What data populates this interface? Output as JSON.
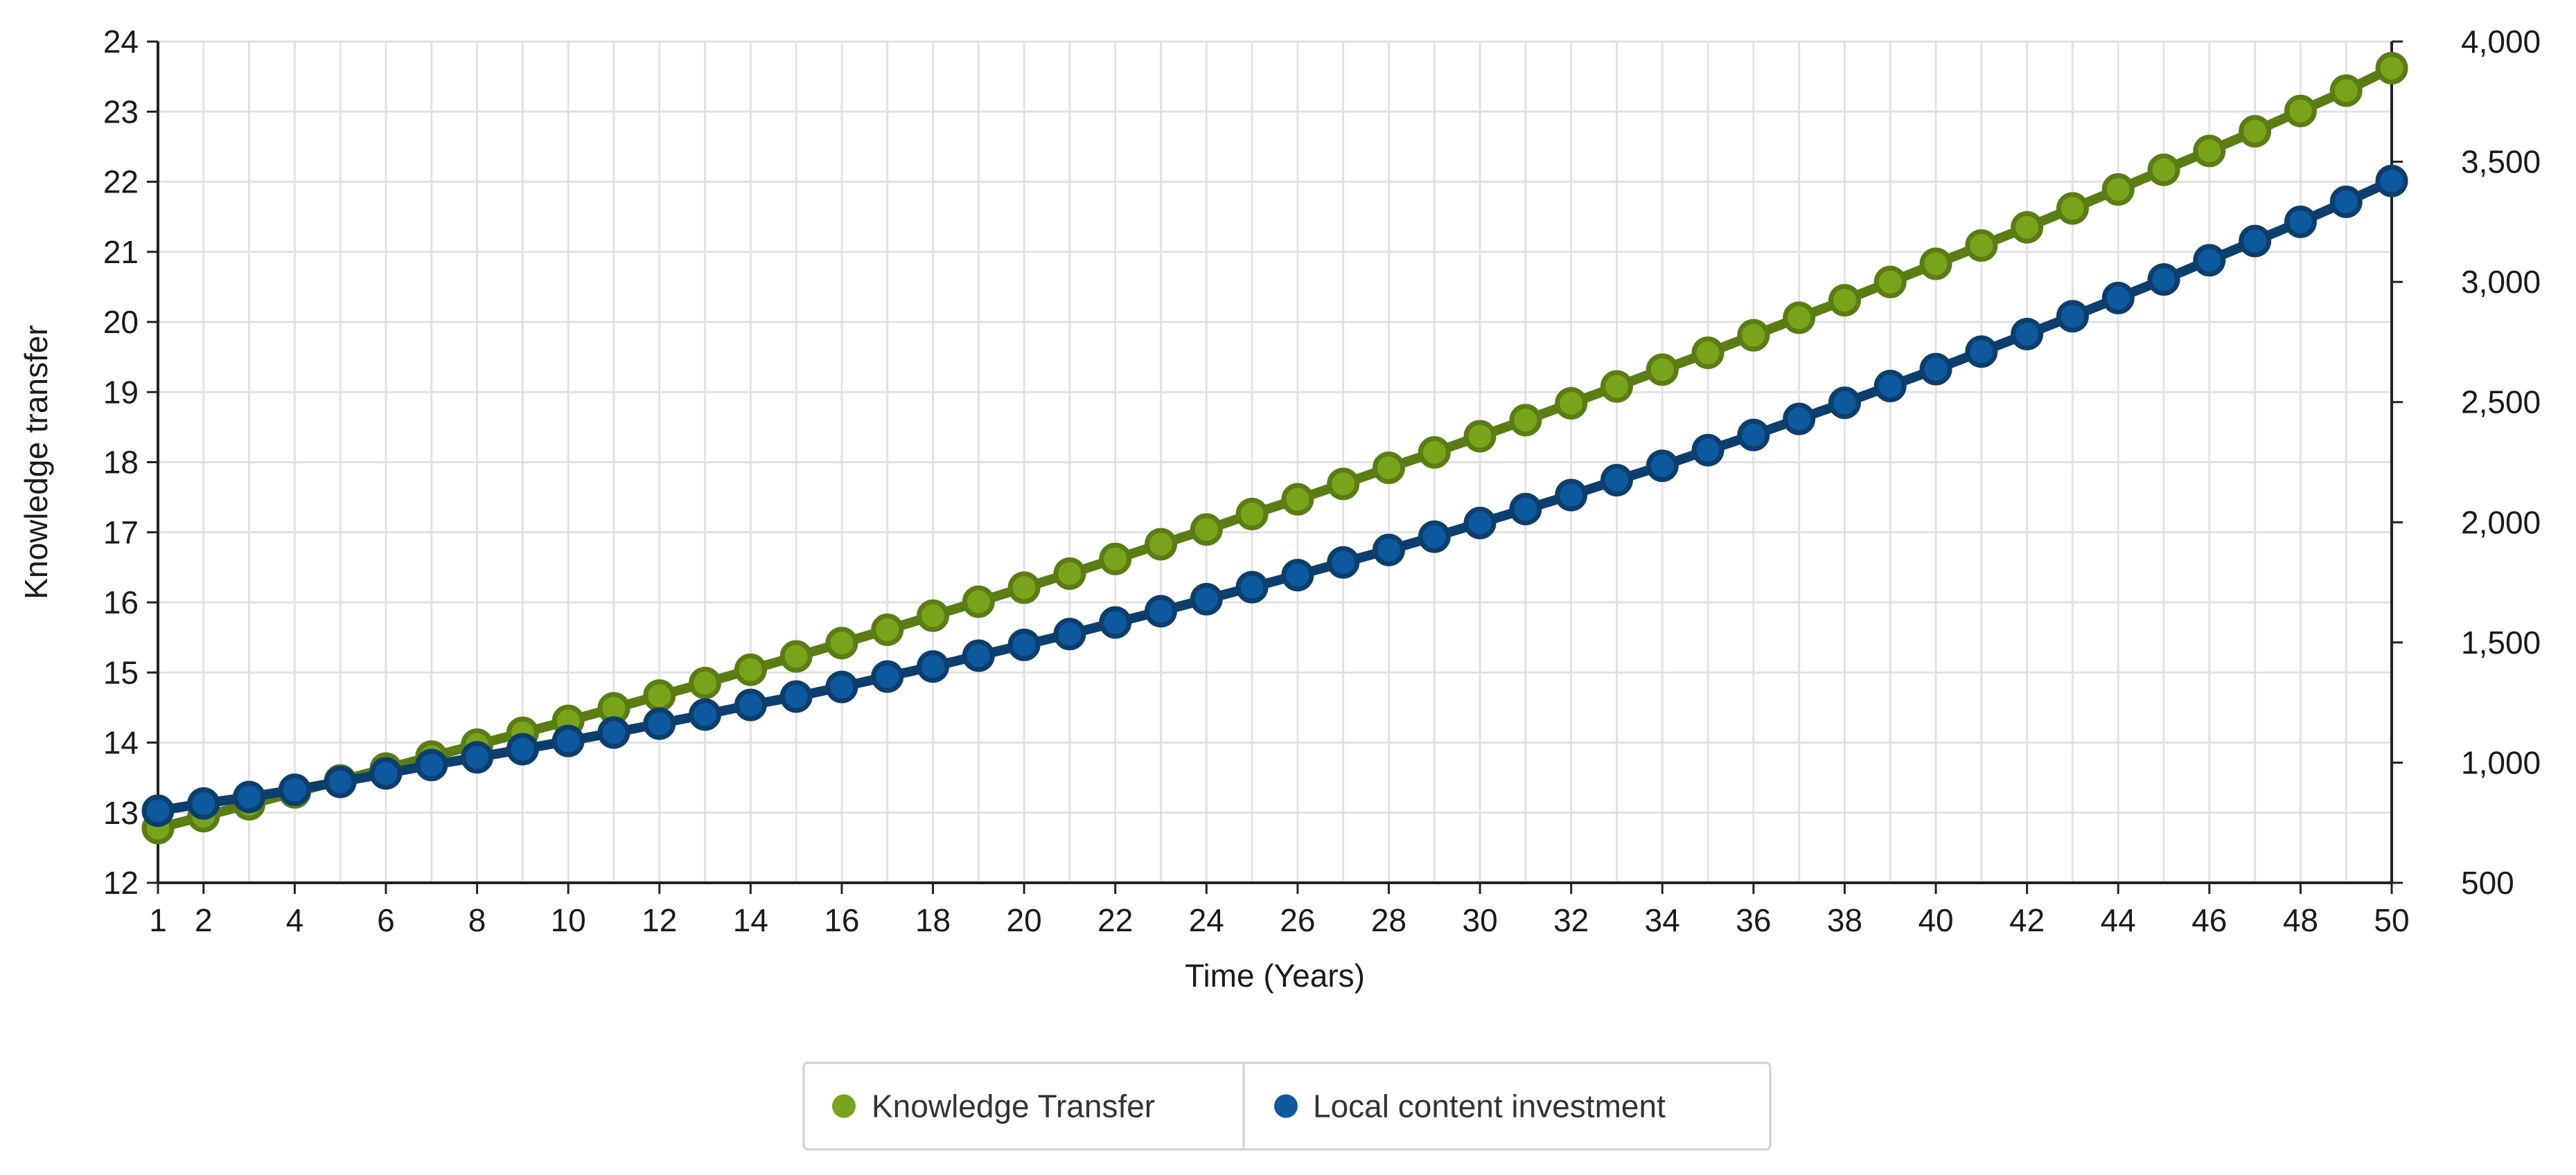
{
  "chart_data": {
    "type": "line",
    "xlabel": "Time (Years)",
    "ylabel": "Knowledge transfer",
    "y2label": "",
    "x_ticks": [
      1,
      2,
      4,
      6,
      8,
      10,
      12,
      14,
      16,
      18,
      20,
      22,
      24,
      26,
      28,
      30,
      32,
      34,
      36,
      38,
      40,
      42,
      44,
      46,
      48,
      50
    ],
    "y_ticks": [
      12,
      13,
      14,
      15,
      16,
      17,
      18,
      19,
      20,
      21,
      22,
      23,
      24
    ],
    "y2_ticks": [
      "500",
      "1,000",
      "1,500",
      "2,000",
      "2,500",
      "3,000",
      "3,500",
      "4,000"
    ],
    "y2_tick_values": [
      500,
      1000,
      1500,
      2000,
      2500,
      3000,
      3500,
      4000
    ],
    "xlim": [
      1,
      50
    ],
    "ylim": [
      12,
      24
    ],
    "y2lim": [
      500,
      4000
    ],
    "grid": true,
    "legend_position": "bottom-center",
    "x": [
      1,
      2,
      3,
      4,
      5,
      6,
      7,
      8,
      9,
      10,
      11,
      12,
      13,
      14,
      15,
      16,
      17,
      18,
      19,
      20,
      21,
      22,
      23,
      24,
      25,
      26,
      27,
      28,
      29,
      30,
      31,
      32,
      33,
      34,
      35,
      36,
      37,
      38,
      39,
      40,
      41,
      42,
      43,
      44,
      45,
      46,
      47,
      48,
      49,
      50
    ],
    "series": [
      {
        "name": "Knowledge Transfer",
        "axis": "left",
        "color": "#5a7d14",
        "marker_color": "#7aa31c",
        "values": [
          12.78,
          12.95,
          13.12,
          13.29,
          13.46,
          13.63,
          13.8,
          13.97,
          14.14,
          14.31,
          14.49,
          14.67,
          14.85,
          15.04,
          15.23,
          15.42,
          15.61,
          15.81,
          16.01,
          16.21,
          16.41,
          16.62,
          16.83,
          17.04,
          17.26,
          17.47,
          17.69,
          17.92,
          18.14,
          18.37,
          18.6,
          18.84,
          19.08,
          19.32,
          19.56,
          19.81,
          20.06,
          20.31,
          20.57,
          20.83,
          21.09,
          21.35,
          21.62,
          21.89,
          22.17,
          22.44,
          22.72,
          23.01,
          23.3,
          23.62
        ]
      },
      {
        "name": "Local content investment",
        "axis": "right",
        "color": "#0d3f6e",
        "marker_color": "#0f5a9e",
        "values": [
          800,
          830,
          857,
          887,
          920,
          955,
          990,
          1022,
          1056,
          1090,
          1125,
          1162,
          1200,
          1240,
          1275,
          1315,
          1358,
          1400,
          1445,
          1490,
          1535,
          1583,
          1630,
          1680,
          1730,
          1780,
          1833,
          1885,
          1940,
          1997,
          2055,
          2113,
          2175,
          2235,
          2300,
          2363,
          2430,
          2497,
          2567,
          2637,
          2710,
          2783,
          2857,
          2933,
          3010,
          3090,
          3170,
          3250,
          3333,
          3420
        ]
      }
    ]
  }
}
